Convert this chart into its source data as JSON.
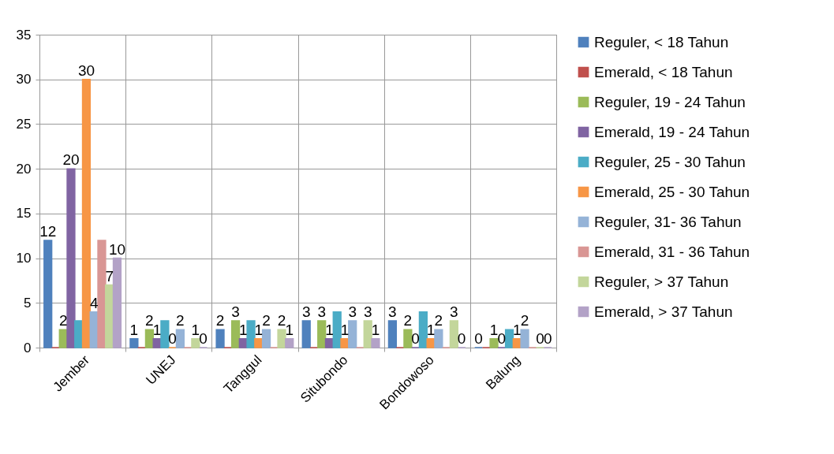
{
  "chart_data": {
    "type": "bar",
    "categories": [
      "Jember",
      "UNEJ",
      "Tanggul",
      "Situbondo",
      "Bondowoso",
      "Balung"
    ],
    "ylim": [
      0,
      35
    ],
    "yticks": [
      0,
      5,
      10,
      15,
      20,
      25,
      30,
      35
    ],
    "grid": true,
    "legend": "right",
    "series": [
      {
        "name": "Reguler, < 18 Tahun",
        "color": "#4f81bd",
        "values": [
          12,
          1,
          2,
          3,
          3,
          0
        ],
        "value_labels": [
          "12",
          "1",
          "2",
          "3",
          "3",
          "0"
        ]
      },
      {
        "name": "Emerald, < 18 Tahun",
        "color": "#c0504d",
        "values": [
          0,
          0,
          0,
          0,
          0,
          0
        ],
        "value_labels": [
          null,
          null,
          null,
          null,
          null,
          null
        ]
      },
      {
        "name": "Reguler, 19 - 24 Tahun",
        "color": "#9bbb59",
        "values": [
          2,
          2,
          3,
          3,
          2,
          1
        ],
        "value_labels": [
          "2",
          "2",
          "3",
          "3",
          "2",
          "1"
        ]
      },
      {
        "name": "Emerald, 19 - 24 Tahun",
        "color": "#8064a2",
        "values": [
          20,
          1,
          1,
          1,
          0,
          0
        ],
        "value_labels": [
          "20",
          "1",
          "1",
          "1",
          "0",
          "0"
        ]
      },
      {
        "name": "Reguler, 25 - 30 Tahun",
        "color": "#4bacc6",
        "values": [
          3,
          3,
          3,
          4,
          4,
          2
        ],
        "value_labels": [
          null,
          null,
          null,
          null,
          null,
          null
        ]
      },
      {
        "name": "Emerald, 25 - 30 Tahun",
        "color": "#f79646",
        "values": [
          30,
          0,
          1,
          1,
          1,
          1
        ],
        "value_labels": [
          "30",
          "0",
          "1",
          "1",
          "1",
          "1"
        ]
      },
      {
        "name": "Reguler, 31- 36 Tahun",
        "color": "#95b3d7",
        "values": [
          4,
          2,
          2,
          3,
          2,
          2
        ],
        "value_labels": [
          "4",
          "2",
          "2",
          "3",
          "2",
          "2"
        ]
      },
      {
        "name": "Emerald, 31 - 36 Tahun",
        "color": "#d99694",
        "values": [
          12,
          0,
          0,
          0,
          0,
          0
        ],
        "value_labels": [
          null,
          null,
          null,
          null,
          null,
          null
        ]
      },
      {
        "name": "Reguler, > 37 Tahun",
        "color": "#c3d69b",
        "values": [
          7,
          1,
          2,
          3,
          3,
          0
        ],
        "value_labels": [
          "7",
          "1",
          "2",
          "3",
          "3",
          "0"
        ]
      },
      {
        "name": "Emerald, > 37 Tahun",
        "color": "#b3a2c7",
        "values": [
          10,
          0,
          1,
          1,
          0,
          0
        ],
        "value_labels": [
          "10",
          "0",
          "1",
          "1",
          "0",
          "0"
        ]
      }
    ]
  }
}
